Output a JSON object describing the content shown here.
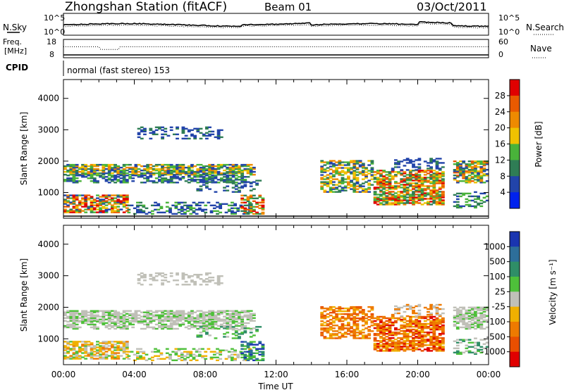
{
  "header": {
    "station": "Zhongshan Station (fitACF)",
    "beam": "Beam 01",
    "date": "03/Oct/2011"
  },
  "noise_panel": {
    "left_label": "N.Sky",
    "right_label": "N.Search",
    "tick_top": "10^5",
    "tick_bottom": "10^0"
  },
  "freq_panel": {
    "left_label_1": "Freq.",
    "left_label_2": "[MHz]",
    "tick_top": "18",
    "tick_bottom": "8",
    "right_label": "Nave",
    "right_tick_top": "60",
    "right_tick_bottom": "0"
  },
  "cpid_panel": {
    "label": "CPID",
    "text": "normal (fast stereo) 153"
  },
  "chart_data": [
    {
      "type": "heatmap",
      "name": "power",
      "ylabel": "Slant Range [km]",
      "yticks": [
        "1000",
        "2000",
        "3000",
        "4000"
      ],
      "ylim": [
        180,
        4600
      ],
      "xticks": [
        "00:00",
        "04:00",
        "08:00",
        "12:00",
        "16:00",
        "20:00",
        "00:00"
      ],
      "colorbar": {
        "label": "Power [dB]",
        "ticks": [
          "4",
          "8",
          "12",
          "16",
          "20",
          "24",
          "28"
        ],
        "colors": [
          "#0022ee",
          "#2244aa",
          "#2f7d55",
          "#49b33a",
          "#f0c200",
          "#ee8a00",
          "#e95a00",
          "#e00000"
        ]
      }
    },
    {
      "type": "heatmap",
      "name": "velocity",
      "ylabel": "Slant Range [km]",
      "yticks": [
        "1000",
        "2000",
        "3000",
        "4000"
      ],
      "ylim": [
        180,
        4600
      ],
      "xticks": [
        "00:00",
        "04:00",
        "08:00",
        "12:00",
        "16:00",
        "20:00",
        "00:00"
      ],
      "xlabel": "Time UT",
      "colorbar": {
        "label": "Velocity [m s⁻¹]",
        "ticks": [
          "1000",
          "500",
          "100",
          "25",
          "-25",
          "-100",
          "-500",
          "-1000"
        ],
        "colors": [
          "#1a35b0",
          "#2d6e9a",
          "#2f8e67",
          "#4ec03a",
          "#c0c0b8",
          "#f0b000",
          "#ee7a00",
          "#e94f00",
          "#e00000"
        ]
      }
    }
  ]
}
